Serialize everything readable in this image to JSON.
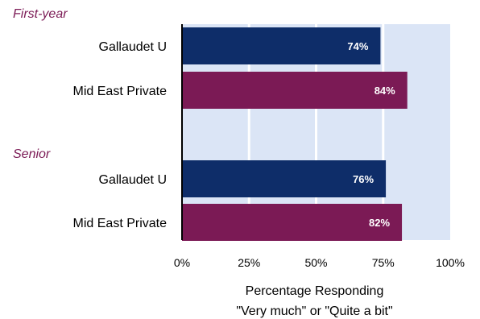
{
  "chart_data": {
    "type": "bar",
    "orientation": "horizontal",
    "groups": [
      {
        "label": "First-year",
        "bars": [
          {
            "category": "Gallaudet U",
            "value": 74,
            "label": "74%",
            "series": "Gallaudet U"
          },
          {
            "category": "Mid East Private",
            "value": 84,
            "label": "84%",
            "series": "Mid East Private"
          }
        ]
      },
      {
        "label": "Senior",
        "bars": [
          {
            "category": "Gallaudet U",
            "value": 76,
            "label": "76%",
            "series": "Gallaudet U"
          },
          {
            "category": "Mid East Private",
            "value": 82,
            "label": "82%",
            "series": "Mid East Private"
          }
        ]
      }
    ],
    "xlabel_lines": [
      "Percentage Responding",
      "\"Very much\" or \"Quite a bit\""
    ],
    "xticks": [
      "0%",
      "25%",
      "50%",
      "75%",
      "100%"
    ],
    "xlim": [
      0,
      100
    ],
    "grid": true,
    "colors": {
      "Gallaudet U": "#0e2d69",
      "Mid East Private": "#7b1a55",
      "group_label": "#7b1a55",
      "plot_bg": "#dbe5f6",
      "gridline": "#ffffff"
    }
  }
}
